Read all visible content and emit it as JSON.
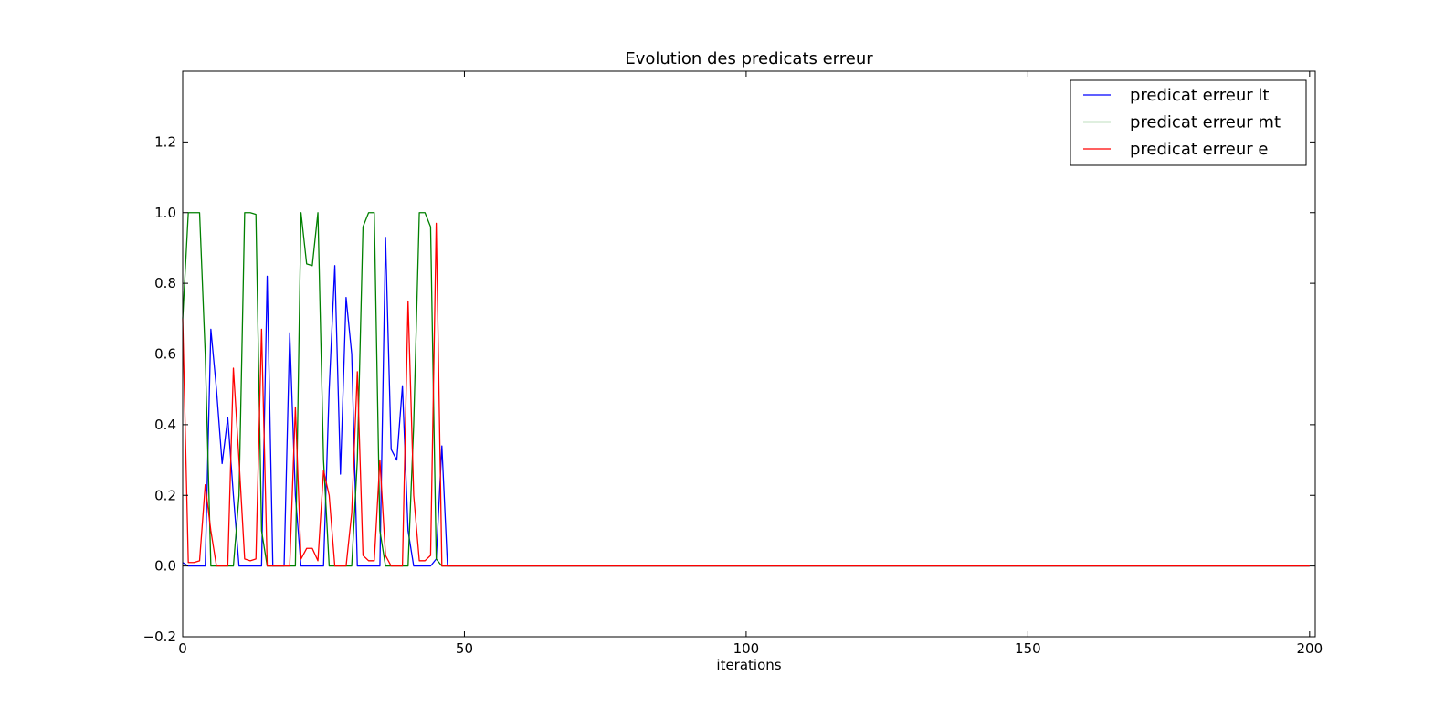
{
  "chart_data": {
    "type": "line",
    "title": "Evolution des predicats erreur",
    "xlabel": "iterations",
    "ylabel": "",
    "xlim": [
      0,
      201
    ],
    "ylim": [
      -0.2,
      1.4
    ],
    "xticks": [
      0,
      50,
      100,
      150,
      200
    ],
    "xtick_labels": [
      "0",
      "50",
      "100",
      "150",
      "200"
    ],
    "yticks": [
      -0.2,
      0.0,
      0.2,
      0.4,
      0.6,
      0.8,
      1.0,
      1.2
    ],
    "ytick_labels": [
      "−0.2",
      "0.0",
      "0.2",
      "0.4",
      "0.6",
      "0.8",
      "1.0",
      "1.2"
    ],
    "grid": false,
    "legend_position": "top-right",
    "x_end": 200,
    "series": [
      {
        "name": "predicat erreur lt",
        "color": "#0000ff",
        "points": [
          [
            0,
            0.01
          ],
          [
            1,
            0
          ],
          [
            2,
            0
          ],
          [
            3,
            0
          ],
          [
            4,
            0
          ],
          [
            5,
            0.67
          ],
          [
            6,
            0.5
          ],
          [
            7,
            0.29
          ],
          [
            8,
            0.42
          ],
          [
            9,
            0.2
          ],
          [
            10,
            0
          ],
          [
            11,
            0
          ],
          [
            12,
            0
          ],
          [
            13,
            0
          ],
          [
            14,
            0
          ],
          [
            15,
            0.82
          ],
          [
            16,
            0
          ],
          [
            17,
            0
          ],
          [
            18,
            0
          ],
          [
            19,
            0.66
          ],
          [
            20,
            0.2
          ],
          [
            21,
            0
          ],
          [
            22,
            0
          ],
          [
            23,
            0
          ],
          [
            24,
            0
          ],
          [
            25,
            0
          ],
          [
            26,
            0.5
          ],
          [
            27,
            0.85
          ],
          [
            28,
            0.26
          ],
          [
            29,
            0.76
          ],
          [
            30,
            0.6
          ],
          [
            31,
            0
          ],
          [
            32,
            0
          ],
          [
            33,
            0
          ],
          [
            34,
            0
          ],
          [
            35,
            0
          ],
          [
            36,
            0.93
          ],
          [
            37,
            0.33
          ],
          [
            38,
            0.3
          ],
          [
            39,
            0.51
          ],
          [
            40,
            0.1
          ],
          [
            41,
            0
          ],
          [
            42,
            0
          ],
          [
            43,
            0
          ],
          [
            44,
            0
          ],
          [
            45,
            0.02
          ],
          [
            46,
            0.34
          ],
          [
            47,
            0
          ]
        ]
      },
      {
        "name": "predicat erreur mt",
        "color": "#008000",
        "points": [
          [
            0,
            0.7
          ],
          [
            1,
            1.0
          ],
          [
            2,
            1.0
          ],
          [
            3,
            1.0
          ],
          [
            4,
            0.6
          ],
          [
            5,
            0
          ],
          [
            6,
            0
          ],
          [
            7,
            0
          ],
          [
            8,
            0
          ],
          [
            9,
            0
          ],
          [
            10,
            0.2
          ],
          [
            11,
            1.0
          ],
          [
            12,
            1.0
          ],
          [
            13,
            0.995
          ],
          [
            14,
            0.1
          ],
          [
            15,
            0
          ],
          [
            16,
            0
          ],
          [
            17,
            0
          ],
          [
            18,
            0
          ],
          [
            19,
            0
          ],
          [
            20,
            0
          ],
          [
            21,
            1.0
          ],
          [
            22,
            0.855
          ],
          [
            23,
            0.85
          ],
          [
            24,
            1.0
          ],
          [
            25,
            0.3
          ],
          [
            26,
            0
          ],
          [
            27,
            0
          ],
          [
            28,
            0
          ],
          [
            29,
            0
          ],
          [
            30,
            0
          ],
          [
            31,
            0.3
          ],
          [
            32,
            0.96
          ],
          [
            33,
            1.0
          ],
          [
            34,
            1.0
          ],
          [
            35,
            0.1
          ],
          [
            36,
            0
          ],
          [
            37,
            0
          ],
          [
            38,
            0
          ],
          [
            39,
            0
          ],
          [
            40,
            0
          ],
          [
            41,
            0.4
          ],
          [
            42,
            1.0
          ],
          [
            43,
            1.0
          ],
          [
            44,
            0.96
          ],
          [
            45,
            0.02
          ],
          [
            46,
            0
          ],
          [
            47,
            0
          ]
        ]
      },
      {
        "name": "predicat erreur e",
        "color": "#ff0000",
        "points": [
          [
            0,
            0.7
          ],
          [
            1,
            0.01
          ],
          [
            2,
            0.01
          ],
          [
            3,
            0.015
          ],
          [
            4,
            0.23
          ],
          [
            5,
            0.1
          ],
          [
            6,
            0
          ],
          [
            7,
            0
          ],
          [
            8,
            0
          ],
          [
            9,
            0.56
          ],
          [
            10,
            0.3
          ],
          [
            11,
            0.02
          ],
          [
            12,
            0.015
          ],
          [
            13,
            0.02
          ],
          [
            14,
            0.67
          ],
          [
            15,
            0
          ],
          [
            16,
            0
          ],
          [
            17,
            0
          ],
          [
            18,
            0
          ],
          [
            19,
            0
          ],
          [
            20,
            0.45
          ],
          [
            21,
            0.02
          ],
          [
            22,
            0.05
          ],
          [
            23,
            0.05
          ],
          [
            24,
            0.015
          ],
          [
            25,
            0.27
          ],
          [
            26,
            0.2
          ],
          [
            27,
            0
          ],
          [
            28,
            0
          ],
          [
            29,
            0
          ],
          [
            30,
            0.15
          ],
          [
            31,
            0.55
          ],
          [
            32,
            0.03
          ],
          [
            33,
            0.015
          ],
          [
            34,
            0.015
          ],
          [
            35,
            0.3
          ],
          [
            36,
            0.03
          ],
          [
            37,
            0
          ],
          [
            38,
            0
          ],
          [
            39,
            0
          ],
          [
            40,
            0.75
          ],
          [
            41,
            0.2
          ],
          [
            42,
            0.015
          ],
          [
            43,
            0.015
          ],
          [
            44,
            0.03
          ],
          [
            45,
            0.97
          ],
          [
            46,
            0
          ],
          [
            47,
            0
          ]
        ]
      }
    ]
  }
}
